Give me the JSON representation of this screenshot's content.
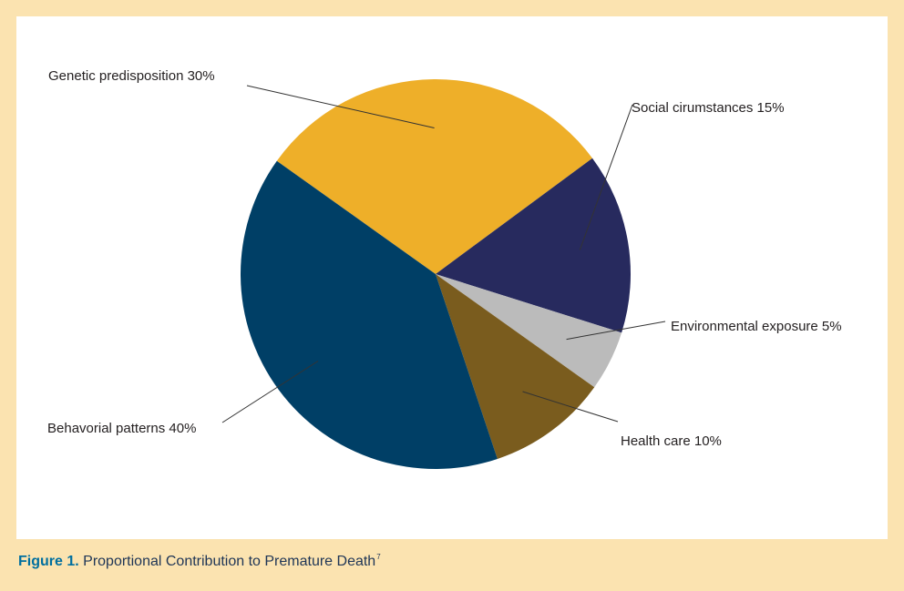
{
  "caption": {
    "figure_label": "Figure 1.",
    "text": "Proportional Contribution to Premature Death",
    "superscript": "7"
  },
  "chart_data": {
    "type": "pie",
    "title": "",
    "slices": [
      {
        "label": "Genetic predisposition 30%",
        "name": "Genetic predisposition",
        "value": 30,
        "color": "#eeaf29"
      },
      {
        "label": "Social cirumstances 15%",
        "name": "Social cirumstances",
        "value": 15,
        "color": "#272a5e"
      },
      {
        "label": "Environmental exposure 5%",
        "name": "Environmental exposure",
        "value": 5,
        "color": "#bbbbbb"
      },
      {
        "label": "Health care 10%",
        "name": "Health care",
        "value": 10,
        "color": "#7a5c1e"
      },
      {
        "label": "Behavorial patterns 40%",
        "name": "Behavorial patterns",
        "value": 40,
        "color": "#003f66"
      }
    ],
    "legend": "callout labels with leader lines",
    "leader_color": "#333333"
  }
}
